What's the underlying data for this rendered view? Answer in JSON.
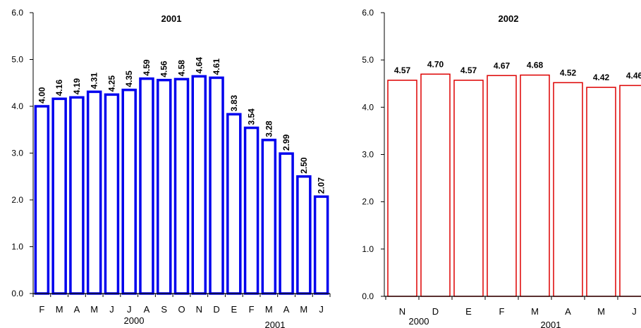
{
  "colors": {
    "left_bar_stroke": "#0000ee",
    "right_bar_stroke": "#dd0000",
    "axis": "#000000",
    "bar_fill": "#ffffff"
  },
  "chart_data": [
    {
      "type": "bar",
      "title": "2001",
      "ylim": [
        0,
        6
      ],
      "yticks": [
        "0.0",
        "1.0",
        "2.0",
        "3.0",
        "4.0",
        "5.0",
        "6.0"
      ],
      "categories": [
        "F",
        "M",
        "A",
        "M",
        "J",
        "J",
        "A",
        "S",
        "O",
        "N",
        "D",
        "E",
        "F",
        "M",
        "A",
        "M",
        "J"
      ],
      "values": [
        4.0,
        4.16,
        4.19,
        4.31,
        4.25,
        4.35,
        4.59,
        4.56,
        4.58,
        4.64,
        4.61,
        3.83,
        3.54,
        3.28,
        2.99,
        2.5,
        2.07
      ],
      "value_labels": [
        "4.00",
        "4.16",
        "4.19",
        "4.31",
        "4.25",
        "4.35",
        "4.59",
        "4.56",
        "4.58",
        "4.64",
        "4.61",
        "3.83",
        "3.54",
        "3.28",
        "2.99",
        "2.50",
        "2.07"
      ],
      "year_labels": [
        "2000",
        "2001"
      ],
      "grid": false,
      "label_orientation": "vertical"
    },
    {
      "type": "bar",
      "title": "2002",
      "ylim": [
        0,
        6
      ],
      "yticks": [
        "0.0",
        "1.0",
        "2.0",
        "3.0",
        "4.0",
        "5.0",
        "6.0"
      ],
      "categories": [
        "N",
        "D",
        "E",
        "F",
        "M",
        "A",
        "M",
        "J"
      ],
      "values": [
        4.57,
        4.7,
        4.57,
        4.67,
        4.68,
        4.52,
        4.42,
        4.46
      ],
      "value_labels": [
        "4.57",
        "4.70",
        "4.57",
        "4.67",
        "4.68",
        "4.52",
        "4.42",
        "4.46"
      ],
      "year_labels": [
        "2000",
        "2001"
      ],
      "grid": false,
      "label_orientation": "horizontal"
    }
  ]
}
